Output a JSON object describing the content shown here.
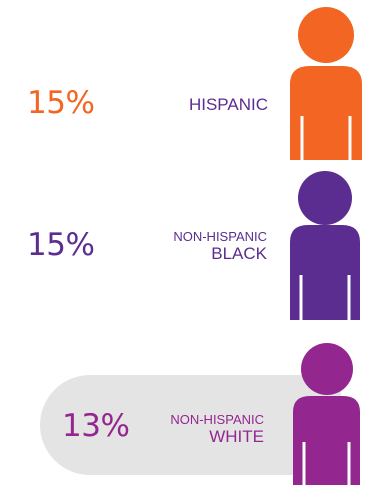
{
  "chart_data": {
    "type": "bar",
    "categories": [
      "HISPANIC",
      "NON-HISPANIC BLACK",
      "NON-HISPANIC WHITE"
    ],
    "values": [
      15,
      15,
      13
    ],
    "value_labels": [
      "15%",
      "15%",
      "13%"
    ],
    "label_lines": [
      [
        "HISPANIC"
      ],
      [
        "NON-HISPANIC",
        "BLACK"
      ],
      [
        "NON-HISPANIC",
        "WHITE"
      ]
    ],
    "colors": [
      "#f26522",
      "#5b2d90",
      "#93278f"
    ],
    "icon": "person-icon",
    "background_color": "#e4e4e4"
  }
}
